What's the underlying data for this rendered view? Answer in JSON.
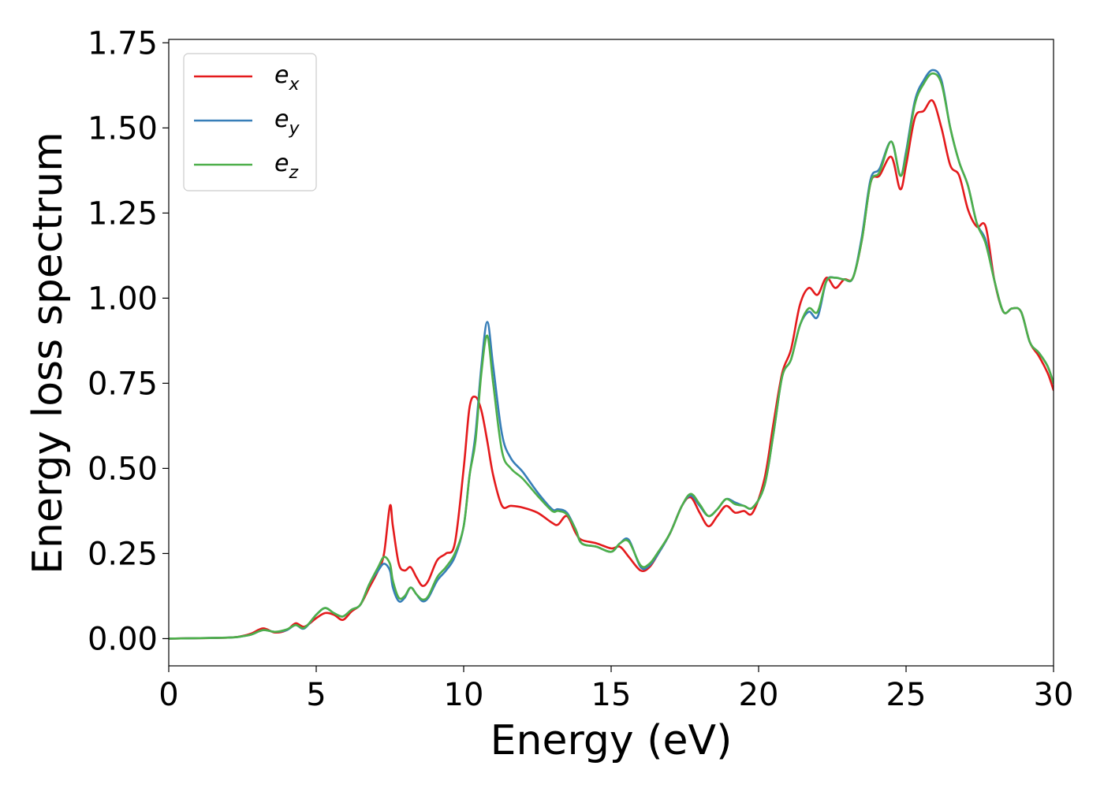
{
  "chart_data": {
    "type": "line",
    "title": "",
    "xlabel": "Energy (eV)",
    "ylabel": "Energy loss spectrum",
    "xlim": [
      0,
      30
    ],
    "ylim": [
      -0.08,
      1.76
    ],
    "xticks": [
      0,
      5,
      10,
      15,
      20,
      25,
      30
    ],
    "xtick_labels": [
      "0",
      "5",
      "10",
      "15",
      "20",
      "25",
      "30"
    ],
    "yticks": [
      0,
      0.25,
      0.5,
      0.75,
      1.0,
      1.25,
      1.5,
      1.75
    ],
    "ytick_labels": [
      "0.00",
      "0.25",
      "0.50",
      "0.75",
      "1.00",
      "1.25",
      "1.50",
      "1.75"
    ],
    "grid": false,
    "legend": "top-left",
    "series": [
      {
        "name": "e_x",
        "legend_base": "e",
        "legend_sub": "x",
        "color": "#e41a1c",
        "x": [
          0,
          2,
          2.5,
          2.8,
          3.2,
          3.6,
          4,
          4.3,
          4.6,
          5,
          5.3,
          5.6,
          5.9,
          6.2,
          6.5,
          6.8,
          7.1,
          7.3,
          7.5,
          7.6,
          7.8,
          8,
          8.2,
          8.4,
          8.6,
          8.8,
          9.1,
          9.4,
          9.7,
          10,
          10.2,
          10.4,
          10.6,
          10.8,
          11,
          11.3,
          11.6,
          12,
          12.5,
          13,
          13.2,
          13.5,
          13.8,
          14,
          14.5,
          15,
          15.3,
          15.6,
          16,
          16.3,
          16.6,
          17,
          17.4,
          17.7,
          18,
          18.3,
          18.6,
          18.9,
          19.2,
          19.5,
          19.8,
          20.2,
          20.5,
          20.8,
          21.1,
          21.4,
          21.7,
          22,
          22.3,
          22.6,
          22.9,
          23.2,
          23.5,
          23.8,
          24.1,
          24.5,
          24.8,
          25,
          25.3,
          25.6,
          25.9,
          26.2,
          26.5,
          26.8,
          27.1,
          27.4,
          27.7,
          28,
          28.3,
          28.6,
          28.9,
          29.2,
          29.5,
          29.8,
          30
        ],
        "y": [
          0,
          0.003,
          0.008,
          0.015,
          0.03,
          0.018,
          0.025,
          0.045,
          0.035,
          0.06,
          0.075,
          0.07,
          0.055,
          0.08,
          0.1,
          0.15,
          0.2,
          0.25,
          0.39,
          0.33,
          0.22,
          0.2,
          0.21,
          0.18,
          0.155,
          0.17,
          0.23,
          0.25,
          0.28,
          0.5,
          0.68,
          0.71,
          0.67,
          0.58,
          0.48,
          0.39,
          0.39,
          0.385,
          0.37,
          0.34,
          0.335,
          0.36,
          0.31,
          0.29,
          0.28,
          0.265,
          0.27,
          0.24,
          0.2,
          0.21,
          0.25,
          0.31,
          0.39,
          0.415,
          0.37,
          0.33,
          0.36,
          0.39,
          0.37,
          0.375,
          0.37,
          0.47,
          0.63,
          0.78,
          0.85,
          0.98,
          1.03,
          1.01,
          1.06,
          1.03,
          1.055,
          1.06,
          1.17,
          1.34,
          1.36,
          1.415,
          1.32,
          1.39,
          1.53,
          1.55,
          1.58,
          1.5,
          1.39,
          1.36,
          1.26,
          1.21,
          1.21,
          1.05,
          0.96,
          0.97,
          0.96,
          0.87,
          0.83,
          0.78,
          0.73
        ]
      },
      {
        "name": "e_y",
        "legend_base": "e",
        "legend_sub": "y",
        "color": "#377eb8",
        "x": [
          0,
          2,
          2.5,
          2.8,
          3.2,
          3.6,
          4,
          4.3,
          4.6,
          5,
          5.3,
          5.6,
          5.9,
          6.2,
          6.5,
          6.8,
          7.1,
          7.3,
          7.5,
          7.6,
          7.8,
          8,
          8.2,
          8.4,
          8.6,
          8.8,
          9.1,
          9.4,
          9.7,
          10,
          10.2,
          10.4,
          10.6,
          10.8,
          11,
          11.3,
          11.6,
          12,
          12.5,
          13,
          13.2,
          13.5,
          13.8,
          14,
          14.5,
          15,
          15.3,
          15.6,
          16,
          16.3,
          16.6,
          17,
          17.4,
          17.7,
          18,
          18.3,
          18.6,
          18.9,
          19.2,
          19.5,
          19.8,
          20.2,
          20.5,
          20.8,
          21.1,
          21.4,
          21.7,
          22,
          22.3,
          22.6,
          22.9,
          23.2,
          23.5,
          23.8,
          24.1,
          24.5,
          24.8,
          25,
          25.3,
          25.6,
          25.9,
          26.2,
          26.5,
          26.8,
          27.1,
          27.4,
          27.7,
          28,
          28.3,
          28.6,
          28.9,
          29.2,
          29.5,
          29.8,
          30
        ],
        "y": [
          0,
          0.003,
          0.007,
          0.012,
          0.025,
          0.02,
          0.025,
          0.04,
          0.03,
          0.07,
          0.09,
          0.075,
          0.065,
          0.085,
          0.1,
          0.16,
          0.2,
          0.22,
          0.2,
          0.15,
          0.11,
          0.12,
          0.15,
          0.13,
          0.11,
          0.12,
          0.17,
          0.2,
          0.24,
          0.33,
          0.48,
          0.6,
          0.8,
          0.93,
          0.8,
          0.6,
          0.53,
          0.49,
          0.43,
          0.38,
          0.38,
          0.37,
          0.32,
          0.28,
          0.27,
          0.255,
          0.28,
          0.29,
          0.21,
          0.215,
          0.25,
          0.31,
          0.39,
          0.42,
          0.39,
          0.36,
          0.38,
          0.41,
          0.4,
          0.39,
          0.385,
          0.45,
          0.6,
          0.77,
          0.82,
          0.92,
          0.96,
          0.945,
          1.05,
          1.06,
          1.055,
          1.06,
          1.18,
          1.35,
          1.38,
          1.46,
          1.36,
          1.43,
          1.58,
          1.64,
          1.67,
          1.64,
          1.5,
          1.4,
          1.33,
          1.22,
          1.17,
          1.05,
          0.96,
          0.97,
          0.96,
          0.87,
          0.84,
          0.8,
          0.75
        ]
      },
      {
        "name": "e_z",
        "legend_base": "e",
        "legend_sub": "z",
        "color": "#4daf4a",
        "x": [
          0,
          2,
          2.5,
          2.8,
          3.2,
          3.6,
          4,
          4.3,
          4.6,
          5,
          5.3,
          5.6,
          5.9,
          6.2,
          6.5,
          6.8,
          7.1,
          7.3,
          7.5,
          7.6,
          7.8,
          8,
          8.2,
          8.4,
          8.6,
          8.8,
          9.1,
          9.4,
          9.7,
          10,
          10.2,
          10.4,
          10.6,
          10.8,
          11,
          11.3,
          11.6,
          12,
          12.5,
          13,
          13.2,
          13.5,
          13.8,
          14,
          14.5,
          15,
          15.3,
          15.6,
          16,
          16.3,
          16.6,
          17,
          17.4,
          17.7,
          18,
          18.3,
          18.6,
          18.9,
          19.2,
          19.5,
          19.8,
          20.2,
          20.5,
          20.8,
          21.1,
          21.4,
          21.7,
          22,
          22.3,
          22.6,
          22.9,
          23.2,
          23.5,
          23.8,
          24.1,
          24.5,
          24.8,
          25,
          25.3,
          25.6,
          25.9,
          26.2,
          26.5,
          26.8,
          27.1,
          27.4,
          27.7,
          28,
          28.3,
          28.6,
          28.9,
          29.2,
          29.5,
          29.8,
          30
        ],
        "y": [
          0,
          0.003,
          0.007,
          0.012,
          0.025,
          0.02,
          0.027,
          0.04,
          0.032,
          0.07,
          0.09,
          0.075,
          0.065,
          0.085,
          0.1,
          0.16,
          0.21,
          0.24,
          0.22,
          0.17,
          0.12,
          0.125,
          0.15,
          0.13,
          0.115,
          0.125,
          0.18,
          0.21,
          0.25,
          0.33,
          0.48,
          0.58,
          0.78,
          0.89,
          0.75,
          0.55,
          0.5,
          0.47,
          0.42,
          0.375,
          0.375,
          0.365,
          0.32,
          0.28,
          0.27,
          0.255,
          0.28,
          0.285,
          0.215,
          0.22,
          0.255,
          0.31,
          0.39,
          0.425,
          0.395,
          0.36,
          0.38,
          0.41,
          0.395,
          0.39,
          0.385,
          0.45,
          0.6,
          0.77,
          0.82,
          0.92,
          0.97,
          0.96,
          1.05,
          1.06,
          1.055,
          1.06,
          1.17,
          1.34,
          1.37,
          1.46,
          1.36,
          1.42,
          1.57,
          1.63,
          1.66,
          1.63,
          1.5,
          1.4,
          1.33,
          1.22,
          1.16,
          1.05,
          0.96,
          0.97,
          0.96,
          0.87,
          0.84,
          0.8,
          0.75
        ]
      }
    ]
  }
}
